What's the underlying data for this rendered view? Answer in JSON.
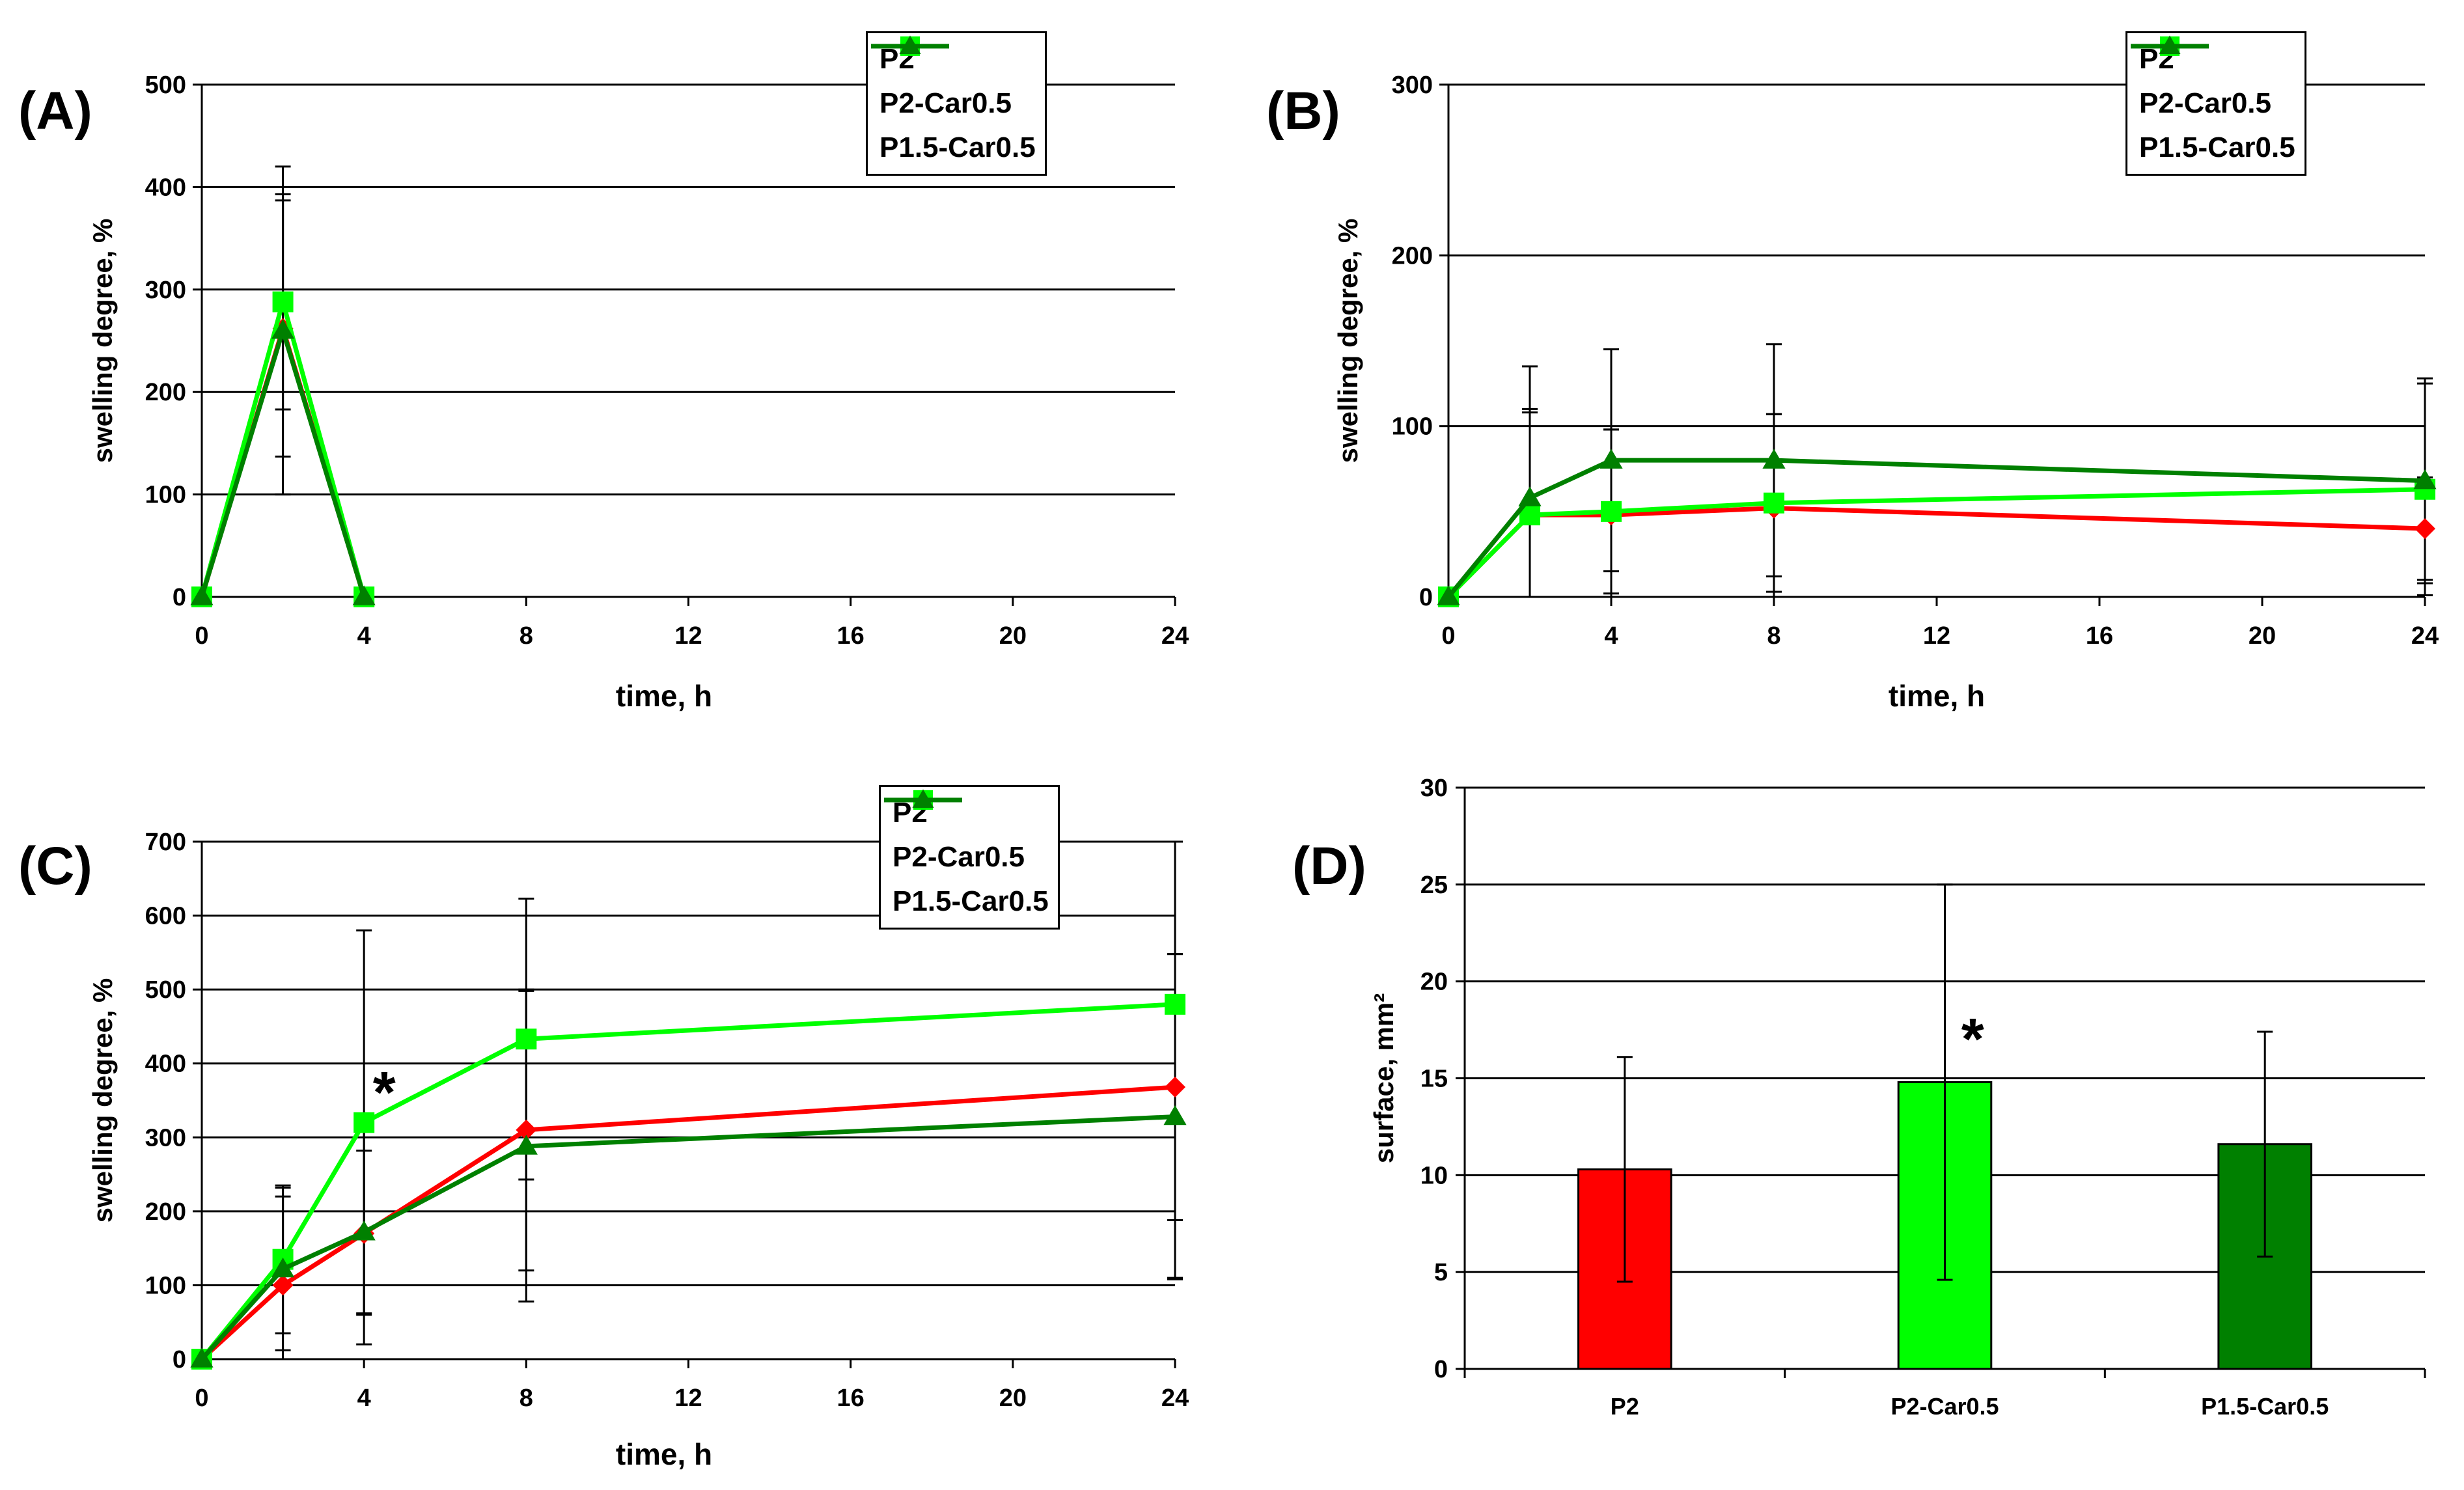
{
  "colors": {
    "P2": "#ff0000",
    "P2-Car0.5": "#00ff00",
    "P1.5-Car0.5": "#008000",
    "gridline": "#000000"
  },
  "chart_data": [
    {
      "id": "A",
      "panel_label": "(A)",
      "type": "line",
      "xlabel": "time, h",
      "ylabel": "swelling degree, %",
      "xlim": [
        0,
        24
      ],
      "ylim": [
        0,
        500
      ],
      "xticks": [
        0,
        4,
        8,
        12,
        16,
        20,
        24
      ],
      "yticks": [
        0,
        100,
        200,
        300,
        400,
        500
      ],
      "grid": true,
      "legend": "top-right",
      "series": [
        {
          "name": "P2",
          "marker": "diamond",
          "x": [
            0,
            2,
            4
          ],
          "y": [
            0,
            262,
            0
          ],
          "err": [
            0,
            125,
            0
          ]
        },
        {
          "name": "P2-Car0.5",
          "marker": "square",
          "x": [
            0,
            2,
            4
          ],
          "y": [
            0,
            288,
            0
          ],
          "err": [
            0,
            105,
            0
          ]
        },
        {
          "name": "P1.5-Car0.5",
          "marker": "triangle",
          "x": [
            0,
            2,
            4
          ],
          "y": [
            0,
            260,
            0
          ],
          "err": [
            0,
            160,
            0
          ]
        }
      ]
    },
    {
      "id": "B",
      "panel_label": "(B)",
      "type": "line",
      "xlabel": "time, h",
      "ylabel": "swelling degree, %",
      "xlim": [
        0,
        24
      ],
      "ylim": [
        0,
        300
      ],
      "xticks": [
        0,
        4,
        8,
        12,
        16,
        20,
        24
      ],
      "yticks": [
        0,
        100,
        200,
        300
      ],
      "grid": true,
      "legend": "top-right",
      "series": [
        {
          "name": "P2",
          "marker": "diamond",
          "x": [
            0,
            2,
            4,
            8,
            24
          ],
          "y": [
            0,
            48,
            48,
            52,
            40
          ],
          "err": [
            0,
            62,
            50,
            55,
            30
          ]
        },
        {
          "name": "P2-Car0.5",
          "marker": "square",
          "x": [
            0,
            2,
            4,
            8,
            24
          ],
          "y": [
            0,
            48,
            50,
            55,
            63
          ],
          "err": [
            0,
            60,
            48,
            52,
            62
          ]
        },
        {
          "name": "P1.5-Car0.5",
          "marker": "triangle",
          "x": [
            0,
            2,
            4,
            8,
            24
          ],
          "y": [
            0,
            58,
            80,
            80,
            68
          ],
          "err": [
            0,
            77,
            65,
            68,
            60
          ]
        }
      ]
    },
    {
      "id": "C",
      "panel_label": "(C)",
      "type": "line",
      "xlabel": "time, h",
      "ylabel": "swelling degree, %",
      "xlim": [
        0,
        24
      ],
      "ylim": [
        0,
        700
      ],
      "xticks": [
        0,
        4,
        8,
        12,
        16,
        20,
        24
      ],
      "yticks": [
        0,
        100,
        200,
        300,
        400,
        500,
        600,
        700
      ],
      "grid": true,
      "legend": "top-right",
      "annotation": {
        "text": "*",
        "x": 4.5,
        "y": 360
      },
      "series": [
        {
          "name": "P2",
          "marker": "diamond",
          "x": [
            0,
            2,
            4,
            8,
            24
          ],
          "y": [
            0,
            100,
            170,
            310,
            368
          ],
          "err": [
            0,
            120,
            150,
            190,
            180
          ]
        },
        {
          "name": "P2-Car0.5",
          "marker": "square",
          "x": [
            0,
            2,
            4,
            8,
            24
          ],
          "y": [
            0,
            135,
            320,
            433,
            480
          ],
          "err": [
            0,
            100,
            260,
            190,
            370
          ]
        },
        {
          "name": "P1.5-Car0.5",
          "marker": "triangle",
          "x": [
            0,
            2,
            4,
            8,
            24
          ],
          "y": [
            0,
            122,
            172,
            288,
            328
          ],
          "err": [
            0,
            110,
            110,
            210,
            220
          ]
        }
      ]
    },
    {
      "id": "D",
      "panel_label": "(D)",
      "type": "bar",
      "xlabel": "",
      "ylabel": "surface, mm²",
      "ylim": [
        0,
        30
      ],
      "yticks": [
        0,
        5,
        10,
        15,
        20,
        25,
        30
      ],
      "grid": true,
      "categories": [
        "P2",
        "P2-Car0.5",
        "P1.5-Car0.5"
      ],
      "values": [
        10.3,
        14.8,
        11.6
      ],
      "err": [
        5.8,
        10.2,
        5.8
      ],
      "annotation": {
        "text": "*",
        "category": 1,
        "y": 17
      }
    }
  ]
}
